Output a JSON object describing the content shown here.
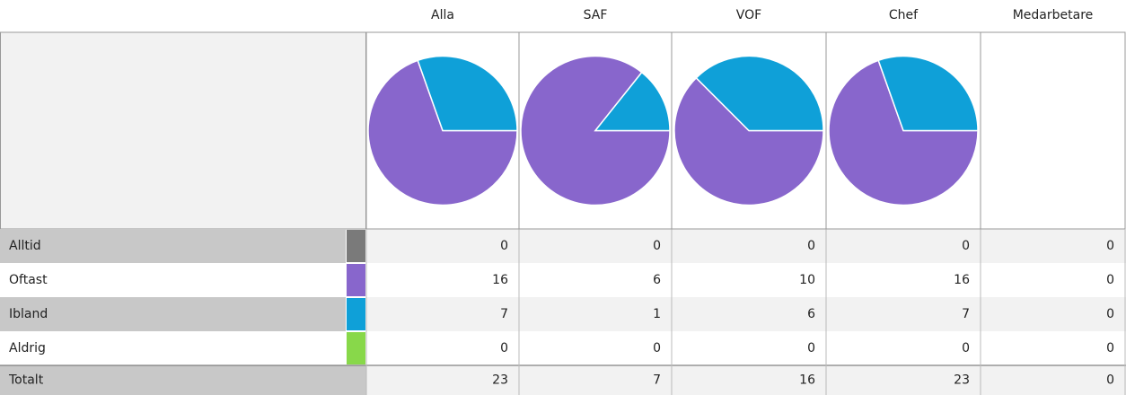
{
  "table": {
    "columns": [
      "Alla",
      "SAF",
      "VOF",
      "Chef",
      "Medarbetare"
    ],
    "rows": [
      {
        "label": "Alltid",
        "color": "#7a7a7a",
        "values": [
          0,
          0,
          0,
          0,
          0
        ]
      },
      {
        "label": "Oftast",
        "color": "#8866cc",
        "values": [
          16,
          6,
          10,
          16,
          0
        ]
      },
      {
        "label": "Ibland",
        "color": "#0fa0d8",
        "values": [
          7,
          1,
          6,
          7,
          0
        ]
      },
      {
        "label": "Aldrig",
        "color": "#88d84a",
        "values": [
          0,
          0,
          0,
          0,
          0
        ]
      }
    ],
    "total": {
      "label": "Totalt",
      "values": [
        23,
        7,
        16,
        23,
        0
      ]
    }
  }
}
